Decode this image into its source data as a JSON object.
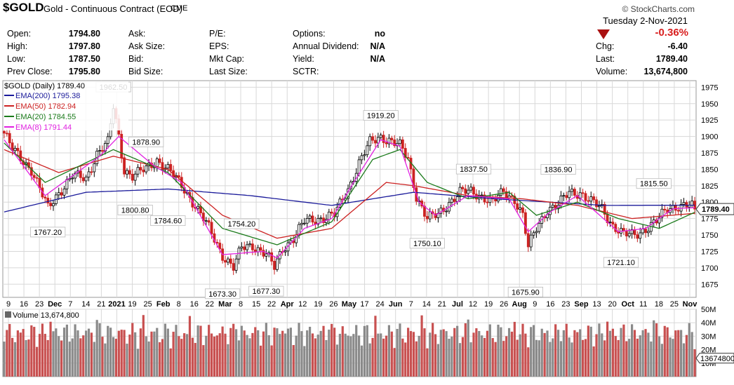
{
  "header": {
    "symbol": "$GOLD",
    "name": "Gold - Continuous Contract (EOD)",
    "exchange": "CME",
    "brand": "© StockCharts.com",
    "date": "Tuesday  2-Nov-2021",
    "change_pct": "-0.36%"
  },
  "quote": {
    "col1": [
      {
        "k": "Open:",
        "v": "1794.80"
      },
      {
        "k": "High:",
        "v": "1797.80"
      },
      {
        "k": "Low:",
        "v": "1787.50"
      },
      {
        "k": "Prev Close:",
        "v": "1795.80"
      }
    ],
    "col2": [
      {
        "k": "Ask:",
        "v": ""
      },
      {
        "k": "Ask Size:",
        "v": ""
      },
      {
        "k": "Bid:",
        "v": ""
      },
      {
        "k": "Bid Size:",
        "v": ""
      }
    ],
    "col3": [
      {
        "k": "P/E:",
        "v": ""
      },
      {
        "k": "EPS:",
        "v": ""
      },
      {
        "k": "Mkt Cap:",
        "v": ""
      },
      {
        "k": "Last Size:",
        "v": ""
      }
    ],
    "col4": [
      {
        "k": "Options:",
        "v": "no"
      },
      {
        "k": "Annual Dividend:",
        "v": "N/A"
      },
      {
        "k": "Yield:",
        "v": "N/A"
      },
      {
        "k": "SCTR:",
        "v": ""
      }
    ],
    "col5": [
      {
        "k": "Chg:",
        "v": "-6.40"
      },
      {
        "k": "Last:",
        "v": "1789.40"
      },
      {
        "k": "Volume:",
        "v": "13,674,800"
      }
    ]
  },
  "colors": {
    "up": "#000000",
    "down": "#cc2222",
    "ema200": "#1a1a9a",
    "ema50": "#cc2222",
    "ema20": "#1a7a1a",
    "ema8": "#e020e0",
    "vol_up": "#8a8a8a",
    "vol_down": "#c85050",
    "grid": "#d8d8d8"
  },
  "chart_data": [
    {
      "type": "line",
      "title": "$GOLD (Daily) 1789.40",
      "ylim": [
        1655,
        1985
      ],
      "y_ticks": [
        1675,
        1700,
        1725,
        1750,
        1775,
        1800,
        1825,
        1850,
        1875,
        1900,
        1925,
        1950,
        1975
      ],
      "x_tick_labels": [
        "9",
        "16",
        "23",
        "Dec",
        "7",
        "14",
        "21",
        "2021",
        "19",
        "25",
        "Feb",
        "8",
        "16",
        "22",
        "Mar",
        "8",
        "15",
        "22",
        "Apr",
        "12",
        "19",
        "26",
        "May",
        "17",
        "24",
        "Jun",
        "7",
        "14",
        "21",
        "Jul",
        "12",
        "19",
        "26",
        "Aug",
        "9",
        "16",
        "23",
        "Sep",
        "13",
        "20",
        "Oct",
        "11",
        "18",
        "25",
        "Nov"
      ],
      "x_tick_bold": [
        "Dec",
        "2021",
        "Feb",
        "Mar",
        "Apr",
        "May",
        "Jun",
        "Jul",
        "Aug",
        "Sep",
        "Oct",
        "Nov"
      ],
      "last_price": "1789.40",
      "legend": [
        {
          "name": "EMA(200) 1795.38",
          "color_key": "ema200"
        },
        {
          "name": "EMA(50) 1782.94",
          "color_key": "ema50"
        },
        {
          "name": "EMA(20) 1784.55",
          "color_key": "ema20"
        },
        {
          "name": "EMA(8) 1791.44",
          "color_key": "ema8"
        }
      ],
      "close_anchors": [
        [
          0,
          1905
        ],
        [
          3,
          1880
        ],
        [
          10,
          1850
        ],
        [
          16,
          1790
        ],
        [
          20,
          1815
        ],
        [
          25,
          1840
        ],
        [
          30,
          1835
        ],
        [
          34,
          1875
        ],
        [
          38,
          1890
        ],
        [
          40,
          1945
        ],
        [
          42,
          1900
        ],
        [
          44,
          1850
        ],
        [
          47,
          1840
        ],
        [
          52,
          1850
        ],
        [
          56,
          1865
        ],
        [
          60,
          1850
        ],
        [
          66,
          1820
        ],
        [
          70,
          1795
        ],
        [
          75,
          1760
        ],
        [
          80,
          1720
        ],
        [
          84,
          1700
        ],
        [
          87,
          1730
        ],
        [
          91,
          1735
        ],
        [
          96,
          1720
        ],
        [
          99,
          1700
        ],
        [
          102,
          1730
        ],
        [
          106,
          1745
        ],
        [
          110,
          1770
        ],
        [
          115,
          1775
        ],
        [
          121,
          1780
        ],
        [
          126,
          1820
        ],
        [
          130,
          1860
        ],
        [
          134,
          1890
        ],
        [
          138,
          1900
        ],
        [
          141,
          1895
        ],
        [
          145,
          1885
        ],
        [
          148,
          1865
        ],
        [
          151,
          1810
        ],
        [
          155,
          1775
        ],
        [
          159,
          1780
        ],
        [
          163,
          1800
        ],
        [
          167,
          1815
        ],
        [
          171,
          1815
        ],
        [
          175,
          1810
        ],
        [
          179,
          1800
        ],
        [
          183,
          1815
        ],
        [
          187,
          1805
        ],
        [
          190,
          1780
        ],
        [
          192,
          1730
        ],
        [
          195,
          1760
        ],
        [
          199,
          1790
        ],
        [
          203,
          1795
        ],
        [
          207,
          1815
        ],
        [
          211,
          1815
        ],
        [
          215,
          1800
        ],
        [
          219,
          1790
        ],
        [
          223,
          1765
        ],
        [
          227,
          1750
        ],
        [
          231,
          1750
        ],
        [
          235,
          1760
        ],
        [
          239,
          1770
        ],
        [
          243,
          1790
        ],
        [
          247,
          1795
        ],
        [
          251,
          1795
        ],
        [
          253,
          1789.4
        ]
      ],
      "ema_anchors": {
        "ema200": [
          [
            0,
            1785
          ],
          [
            30,
            1815
          ],
          [
            60,
            1820
          ],
          [
            90,
            1810
          ],
          [
            120,
            1795
          ],
          [
            150,
            1815
          ],
          [
            180,
            1805
          ],
          [
            220,
            1795
          ],
          [
            253,
            1795.38
          ]
        ],
        "ema50": [
          [
            0,
            1880
          ],
          [
            20,
            1845
          ],
          [
            40,
            1870
          ],
          [
            60,
            1850
          ],
          [
            80,
            1780
          ],
          [
            100,
            1745
          ],
          [
            120,
            1760
          ],
          [
            140,
            1830
          ],
          [
            150,
            1825
          ],
          [
            170,
            1810
          ],
          [
            190,
            1805
          ],
          [
            210,
            1795
          ],
          [
            230,
            1775
          ],
          [
            253,
            1782.94
          ]
        ],
        "ema20": [
          [
            0,
            1890
          ],
          [
            15,
            1830
          ],
          [
            35,
            1870
          ],
          [
            40,
            1880
          ],
          [
            60,
            1845
          ],
          [
            80,
            1760
          ],
          [
            100,
            1735
          ],
          [
            120,
            1770
          ],
          [
            135,
            1865
          ],
          [
            145,
            1880
          ],
          [
            155,
            1830
          ],
          [
            170,
            1805
          ],
          [
            185,
            1815
          ],
          [
            195,
            1780
          ],
          [
            210,
            1800
          ],
          [
            225,
            1775
          ],
          [
            240,
            1760
          ],
          [
            253,
            1784.55
          ]
        ],
        "ema8": [
          [
            0,
            1895
          ],
          [
            15,
            1810
          ],
          [
            35,
            1870
          ],
          [
            42,
            1900
          ],
          [
            55,
            1855
          ],
          [
            65,
            1830
          ],
          [
            80,
            1720
          ],
          [
            95,
            1725
          ],
          [
            100,
            1715
          ],
          [
            110,
            1760
          ],
          [
            120,
            1775
          ],
          [
            128,
            1830
          ],
          [
            138,
            1895
          ],
          [
            145,
            1885
          ],
          [
            152,
            1800
          ],
          [
            158,
            1780
          ],
          [
            170,
            1810
          ],
          [
            185,
            1805
          ],
          [
            192,
            1755
          ],
          [
            200,
            1785
          ],
          [
            210,
            1810
          ],
          [
            225,
            1755
          ],
          [
            235,
            1760
          ],
          [
            245,
            1790
          ],
          [
            253,
            1791.44
          ]
        ]
      },
      "annotations": [
        {
          "text": "1962.50",
          "i": 40
        },
        {
          "text": "1767.20",
          "i": 16
        },
        {
          "text": "1878.90",
          "i": 52
        },
        {
          "text": "1800.80",
          "i": 48
        },
        {
          "text": "1784.60",
          "i": 60
        },
        {
          "text": "1754.20",
          "i": 87
        },
        {
          "text": "1673.30",
          "i": 80
        },
        {
          "text": "1677.30",
          "i": 96
        },
        {
          "text": "1919.20",
          "i": 138
        },
        {
          "text": "1750.10",
          "i": 155
        },
        {
          "text": "1837.50",
          "i": 172
        },
        {
          "text": "1836.90",
          "i": 203
        },
        {
          "text": "1675.90",
          "i": 191
        },
        {
          "text": "1815.50",
          "i": 238
        },
        {
          "text": "1721.10",
          "i": 226
        }
      ]
    },
    {
      "type": "bar",
      "title": "Volume 13,674,800",
      "ylim": [
        0,
        50
      ],
      "y_ticks": [
        "10M",
        "20M",
        "30M",
        "40M",
        "50M"
      ],
      "last_value": "13674800",
      "volume_series_note": ""
    }
  ]
}
